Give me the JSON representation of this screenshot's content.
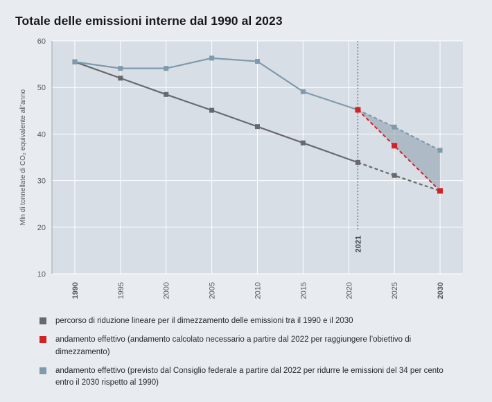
{
  "chart_data": {
    "type": "line",
    "title": "Totale delle emissioni interne dal 1990 al 2023",
    "ylabel": "Mln di tonnellate di CO₂ equivalente all’anno",
    "ylim": [
      10,
      60
    ],
    "xlim": [
      1987.5,
      2032.5
    ],
    "yticks": [
      10,
      20,
      30,
      40,
      50,
      60
    ],
    "xticks": [
      1990,
      1995,
      2000,
      2005,
      2010,
      2015,
      2020,
      2025,
      2030
    ],
    "bold_xticks": [
      1990,
      2030
    ],
    "grid": true,
    "page_bg": "#e8ecf1",
    "plot_bg": "#d8dee5",
    "grid_color": "#ffffff",
    "axis_line_color": "#9aa4ae",
    "axis_text_color": "#55595f",
    "annotation": {
      "x": 2021,
      "label": "2021",
      "color": "#3c4046",
      "line_from": 60,
      "line_to": 19.3,
      "label_at": 18.2
    },
    "shaded_area": {
      "name": "gap-between-forecast-and-required-path",
      "color": "#93a3b0",
      "opacity": 0.6,
      "points": [
        [
          2021,
          45.2
        ],
        [
          2025,
          41.5
        ],
        [
          2030,
          36.5
        ],
        [
          2030,
          27.8
        ]
      ]
    },
    "series": [
      {
        "name": "percorso di riduzione lineare 1990–2030",
        "color": "#67696e",
        "line_width": 2.2,
        "marker_size": 7,
        "segments": [
          {
            "style": "solid",
            "points": [
              [
                1990,
                55.5
              ],
              [
                1995,
                52.0
              ],
              [
                2000,
                48.5
              ],
              [
                2005,
                45.1
              ],
              [
                2010,
                41.6
              ],
              [
                2015,
                38.1
              ],
              [
                2021,
                33.9
              ]
            ]
          },
          {
            "style": "dashed",
            "points": [
              [
                2021,
                33.9
              ],
              [
                2025,
                31.1
              ],
              [
                2030,
                27.8
              ]
            ]
          }
        ],
        "markers": [
          [
            1990,
            55.5
          ],
          [
            1995,
            52.0
          ],
          [
            2000,
            48.5
          ],
          [
            2005,
            45.1
          ],
          [
            2010,
            41.6
          ],
          [
            2015,
            38.1
          ],
          [
            2021,
            33.9
          ],
          [
            2025,
            31.1
          ]
        ]
      },
      {
        "name": "andamento effettivo / previsto dal Consiglio federale",
        "color": "#7e9aac",
        "line_width": 2.2,
        "marker_size": 7,
        "segments": [
          {
            "style": "solid",
            "points": [
              [
                1990,
                55.5
              ],
              [
                1995,
                54.1
              ],
              [
                2000,
                54.1
              ],
              [
                2005,
                56.3
              ],
              [
                2010,
                55.6
              ],
              [
                2015,
                49.1
              ],
              [
                2021,
                45.2
              ]
            ]
          },
          {
            "style": "dashed",
            "points": [
              [
                2021,
                45.2
              ],
              [
                2025,
                41.5
              ],
              [
                2030,
                36.5
              ]
            ]
          }
        ],
        "markers": [
          [
            1990,
            55.5
          ],
          [
            1995,
            54.1
          ],
          [
            2000,
            54.1
          ],
          [
            2005,
            56.3
          ],
          [
            2010,
            55.6
          ],
          [
            2015,
            49.1
          ],
          [
            2025,
            41.5
          ],
          [
            2030,
            36.5
          ]
        ]
      },
      {
        "name": "andamento calcolato necessario dal 2022",
        "color": "#d42127",
        "line_width": 2,
        "marker_size": 8,
        "segments": [
          {
            "style": "dashed",
            "points": [
              [
                2021,
                45.2
              ],
              [
                2030,
                27.8
              ]
            ]
          }
        ],
        "markers": [
          [
            2021,
            45.2
          ],
          [
            2025,
            37.5
          ],
          [
            2030,
            27.8
          ]
        ]
      }
    ]
  },
  "legend": {
    "items": [
      {
        "color": "#67696e",
        "text": "percorso di riduzione lineare per il dimezzamento delle emissioni tra il 1990 e il 2030"
      },
      {
        "color": "#d42127",
        "text": "andamento effettivo (andamento calcolato necessario a partire dal 2022 per raggiungere l’obiettivo di dimezzamento)"
      },
      {
        "color": "#7e9aac",
        "text": "andamento effettivo (previsto dal Consiglio federale a partire dal 2022 per ridurre le emissioni del 34 per cento entro il 2030 rispetto al 1990)"
      }
    ]
  }
}
